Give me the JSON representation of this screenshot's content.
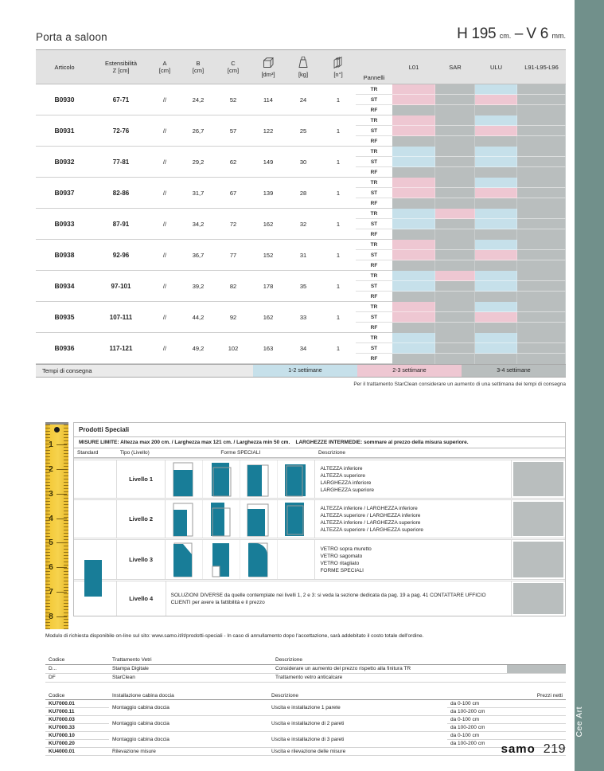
{
  "header": {
    "title": "Porta a saloon",
    "spec": {
      "h": "H 195",
      "h_unit": "cm.",
      "dash": "–",
      "v": "V 6",
      "v_unit": "mm."
    }
  },
  "colors": {
    "B": "#c6e0ea",
    "P": "#eec7d2",
    "G": "#b9bebe"
  },
  "table": {
    "col_headers": {
      "articolo": "Articolo",
      "est_line1": "Estensibilità",
      "est_line2": "Z [cm]",
      "a1": "A",
      "a2": "[cm]",
      "b1": "B",
      "b2": "[cm]",
      "c1": "C",
      "c2": "[cm]",
      "dm": "[dm³]",
      "kg": "[kg]",
      "n": "[n°]",
      "pannelli": "Pannelli",
      "finishes": [
        "L01",
        "SAR",
        "ULU",
        "L91-L95-L96"
      ]
    },
    "panel_labels": [
      "TR",
      "ST",
      "RF"
    ],
    "rows": [
      {
        "articolo": "B0930",
        "est": "67-71",
        "a": "//",
        "b": "24,2",
        "c": "52",
        "dm": "114",
        "kg": "24",
        "n": "1",
        "delivery": {
          "TR": [
            "P",
            "G",
            "B",
            "G"
          ],
          "ST": [
            "P",
            "G",
            "P",
            "G"
          ],
          "RF": [
            "G",
            "G",
            "G",
            "G"
          ]
        }
      },
      {
        "articolo": "B0931",
        "est": "72-76",
        "a": "//",
        "b": "26,7",
        "c": "57",
        "dm": "122",
        "kg": "25",
        "n": "1",
        "delivery": {
          "TR": [
            "P",
            "G",
            "B",
            "G"
          ],
          "ST": [
            "P",
            "G",
            "P",
            "G"
          ],
          "RF": [
            "G",
            "G",
            "G",
            "G"
          ]
        }
      },
      {
        "articolo": "B0932",
        "est": "77-81",
        "a": "//",
        "b": "29,2",
        "c": "62",
        "dm": "149",
        "kg": "30",
        "n": "1",
        "delivery": {
          "TR": [
            "B",
            "G",
            "B",
            "G"
          ],
          "ST": [
            "B",
            "G",
            "B",
            "G"
          ],
          "RF": [
            "G",
            "G",
            "G",
            "G"
          ]
        }
      },
      {
        "articolo": "B0937",
        "est": "82-86",
        "a": "//",
        "b": "31,7",
        "c": "67",
        "dm": "139",
        "kg": "28",
        "n": "1",
        "delivery": {
          "TR": [
            "P",
            "G",
            "B",
            "G"
          ],
          "ST": [
            "P",
            "G",
            "P",
            "G"
          ],
          "RF": [
            "G",
            "G",
            "G",
            "G"
          ]
        }
      },
      {
        "articolo": "B0933",
        "est": "87-91",
        "a": "//",
        "b": "34,2",
        "c": "72",
        "dm": "162",
        "kg": "32",
        "n": "1",
        "delivery": {
          "TR": [
            "B",
            "P",
            "B",
            "G"
          ],
          "ST": [
            "B",
            "G",
            "B",
            "G"
          ],
          "RF": [
            "G",
            "G",
            "G",
            "G"
          ]
        }
      },
      {
        "articolo": "B0938",
        "est": "92-96",
        "a": "//",
        "b": "36,7",
        "c": "77",
        "dm": "152",
        "kg": "31",
        "n": "1",
        "delivery": {
          "TR": [
            "P",
            "G",
            "B",
            "G"
          ],
          "ST": [
            "P",
            "G",
            "P",
            "G"
          ],
          "RF": [
            "G",
            "G",
            "G",
            "G"
          ]
        }
      },
      {
        "articolo": "B0934",
        "est": "97-101",
        "a": "//",
        "b": "39,2",
        "c": "82",
        "dm": "178",
        "kg": "35",
        "n": "1",
        "delivery": {
          "TR": [
            "B",
            "P",
            "B",
            "G"
          ],
          "ST": [
            "B",
            "G",
            "B",
            "G"
          ],
          "RF": [
            "G",
            "G",
            "G",
            "G"
          ]
        }
      },
      {
        "articolo": "B0935",
        "est": "107-111",
        "a": "//",
        "b": "44,2",
        "c": "92",
        "dm": "162",
        "kg": "33",
        "n": "1",
        "delivery": {
          "TR": [
            "P",
            "G",
            "B",
            "G"
          ],
          "ST": [
            "P",
            "G",
            "P",
            "G"
          ],
          "RF": [
            "G",
            "G",
            "G",
            "G"
          ]
        }
      },
      {
        "articolo": "B0936",
        "est": "117-121",
        "a": "//",
        "b": "49,2",
        "c": "102",
        "dm": "163",
        "kg": "34",
        "n": "1",
        "delivery": {
          "TR": [
            "B",
            "G",
            "B",
            "G"
          ],
          "ST": [
            "B",
            "G",
            "B",
            "G"
          ],
          "RF": [
            "G",
            "G",
            "G",
            "G"
          ]
        }
      }
    ]
  },
  "legend": {
    "label": "Tempi di consegna",
    "items": [
      {
        "text": "1-2 settimane",
        "key": "B"
      },
      {
        "text": "2-3 settimane",
        "key": "P"
      },
      {
        "text": "3-4 settimane",
        "key": "G"
      }
    ]
  },
  "table_note": "Per il trattamento StarClean considerare un aumento di una settimana dei tempi di consegna",
  "prodotti_speciali": {
    "title": "Prodotti Speciali",
    "limits": "MISURE LIMITE: Altezza max 200 cm. / Larghezza max 121 cm. / Larghezza min 50 cm.",
    "intermediate": "LARGHEZZE INTERMEDIE: sommare al prezzo della misura superiore.",
    "headers": {
      "standard": "Standard",
      "tipo": "Tipo (Livello)",
      "forme": "Forme SPECIALI",
      "descrizione": "Descrizione"
    },
    "ruler_numbers": [
      "1",
      "2",
      "3",
      "4",
      "5",
      "6",
      "7",
      "8"
    ],
    "rows": [
      {
        "label": "Livello 1",
        "shapes": [
          "altezza-inferiore",
          "altezza-superiore",
          "larghezza-inferiore",
          "larghezza-superiore"
        ],
        "desc_lines": [
          "ALTEZZA inferiore",
          "ALTEZZA superiore",
          "LARGHEZZA inferiore",
          "LARGHEZZA superiore"
        ]
      },
      {
        "label": "Livello 2",
        "shapes": [
          "altinf-larginf",
          "altsup-larginf",
          "altinf-largsup",
          "altsup-largsup"
        ],
        "desc_lines": [
          "ALTEZZA inferiore / LARGHEZZA inferiore",
          "ALTEZZA superiore / LARGHEZZA inferiore",
          "ALTEZZA inferiore / LARGHEZZA superiore",
          "ALTEZZA superiore / LARGHEZZA superiore"
        ]
      },
      {
        "label": "Livello 3",
        "shapes": [
          "vetro-diagonale",
          "vetro-notch",
          "vetro-round"
        ],
        "desc_lines": [
          "VETRO sopra muretto",
          "VETRO sagomato",
          "VETRO ritagliato",
          "FORME SPECIALI"
        ]
      },
      {
        "label": "Livello 4",
        "shapes": [],
        "desc_lines": [],
        "text": "SOLUZIONI DIVERSE da quelle contemplate nei livelli 1, 2 e 3: si veda la sezione dedicata da pag. 19 a pag. 41 CONTATTARE UFFICIO CLIENTI per avere la fattibilità e il prezzo"
      }
    ],
    "note": "Modulo di richiesta disponibile on-line sul sito: www.samo.it/it/prodotti-speciali - In caso di annullamento dopo l'accettazione, sarà addebitato il costo totale dell'ordine."
  },
  "trattamenti": {
    "headers": [
      "Codice",
      "Trattamento Vetri",
      "Descrizione"
    ],
    "rows": [
      {
        "codice": "D...",
        "nome": "Stampa Digitale",
        "desc": "Considerare un aumento del prezzo rispetto alla finitura TR",
        "gray": true
      },
      {
        "codice": "DF",
        "nome": "StarClean",
        "desc": "Trattamento vetro anticalcare",
        "gray": false
      }
    ]
  },
  "installazione": {
    "headers": [
      "Codice",
      "Installazione cabina doccia",
      "Descrizione",
      "",
      "Prezzi netti"
    ],
    "groups": [
      {
        "codici": [
          "KU7000.01",
          "KU7000.11"
        ],
        "nome": "Montaggio cabina doccia",
        "desc": "Uscita e installazione 1 parete",
        "ranges": [
          "da 0-100 cm",
          "da 100-200 cm"
        ]
      },
      {
        "codici": [
          "KU7000.03",
          "KU7000.33"
        ],
        "nome": "Montaggio cabina doccia",
        "desc": "Uscita e installazione di 2 pareti",
        "ranges": [
          "da 0-100 cm",
          "da 100-200 cm"
        ]
      },
      {
        "codici": [
          "KU7000.10",
          "KU7000.20"
        ],
        "nome": "Montaggio cabina doccia",
        "desc": "Uscita e installazione di 3 pareti",
        "ranges": [
          "da 0-100 cm",
          "da 100-200 cm"
        ]
      },
      {
        "codici": [
          "KU4000.01"
        ],
        "nome": "Rilevazione misure",
        "desc": "Uscita e rilevazione delle misure",
        "ranges": []
      }
    ]
  },
  "footer": {
    "brand": "samo",
    "page": "219",
    "sidebar": "Cee Art"
  }
}
